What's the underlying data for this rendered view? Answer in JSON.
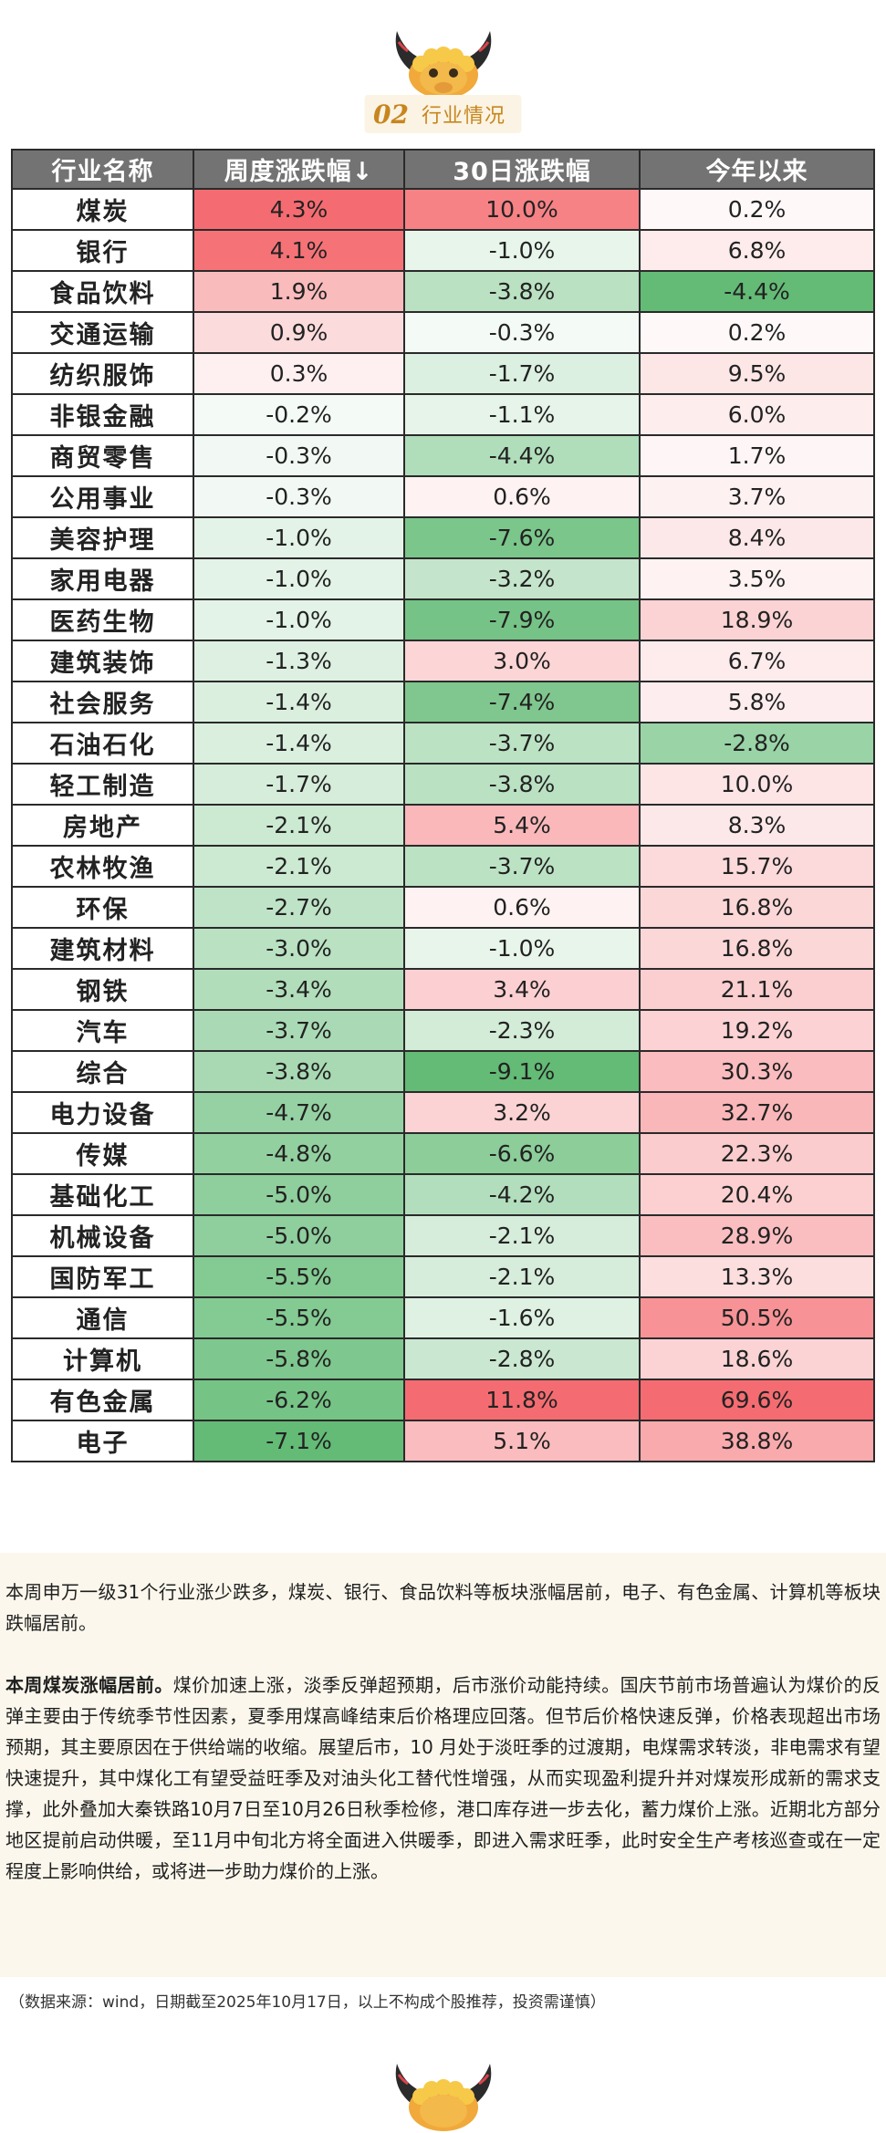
{
  "section": {
    "number": "02",
    "title": "行业情况"
  },
  "table": {
    "headers": [
      "行业名称",
      "周度涨跌幅↓",
      "30日涨跌幅",
      "今年以来"
    ],
    "rows": [
      [
        "煤炭",
        "4.3%",
        "10.0%",
        "0.2%"
      ],
      [
        "银行",
        "4.1%",
        "-1.0%",
        "6.8%"
      ],
      [
        "食品饮料",
        "1.9%",
        "-3.8%",
        "-4.4%"
      ],
      [
        "交通运输",
        "0.9%",
        "-0.3%",
        "0.2%"
      ],
      [
        "纺织服饰",
        "0.3%",
        "-1.7%",
        "9.5%"
      ],
      [
        "非银金融",
        "-0.2%",
        "-1.1%",
        "6.0%"
      ],
      [
        "商贸零售",
        "-0.3%",
        "-4.4%",
        "1.7%"
      ],
      [
        "公用事业",
        "-0.3%",
        "0.6%",
        "3.7%"
      ],
      [
        "美容护理",
        "-1.0%",
        "-7.6%",
        "8.4%"
      ],
      [
        "家用电器",
        "-1.0%",
        "-3.2%",
        "3.5%"
      ],
      [
        "医药生物",
        "-1.0%",
        "-7.9%",
        "18.9%"
      ],
      [
        "建筑装饰",
        "-1.3%",
        "3.0%",
        "6.7%"
      ],
      [
        "社会服务",
        "-1.4%",
        "-7.4%",
        "5.8%"
      ],
      [
        "石油石化",
        "-1.4%",
        "-3.7%",
        "-2.8%"
      ],
      [
        "轻工制造",
        "-1.7%",
        "-3.8%",
        "10.0%"
      ],
      [
        "房地产",
        "-2.1%",
        "5.4%",
        "8.3%"
      ],
      [
        "农林牧渔",
        "-2.1%",
        "-3.7%",
        "15.7%"
      ],
      [
        "环保",
        "-2.7%",
        "0.6%",
        "16.8%"
      ],
      [
        "建筑材料",
        "-3.0%",
        "-1.0%",
        "16.8%"
      ],
      [
        "钢铁",
        "-3.4%",
        "3.4%",
        "21.1%"
      ],
      [
        "汽车",
        "-3.7%",
        "-2.3%",
        "19.2%"
      ],
      [
        "综合",
        "-3.8%",
        "-9.1%",
        "30.3%"
      ],
      [
        "电力设备",
        "-4.7%",
        "3.2%",
        "32.7%"
      ],
      [
        "传媒",
        "-4.8%",
        "-6.6%",
        "22.3%"
      ],
      [
        "基础化工",
        "-5.0%",
        "-4.2%",
        "20.4%"
      ],
      [
        "机械设备",
        "-5.0%",
        "-2.1%",
        "28.9%"
      ],
      [
        "国防军工",
        "-5.5%",
        "-2.1%",
        "13.3%"
      ],
      [
        "通信",
        "-5.5%",
        "-1.6%",
        "50.5%"
      ],
      [
        "计算机",
        "-5.8%",
        "-2.8%",
        "18.6%"
      ],
      [
        "有色金属",
        "-6.2%",
        "11.8%",
        "69.6%"
      ],
      [
        "电子",
        "-7.1%",
        "5.1%",
        "38.8%"
      ]
    ]
  },
  "colors": {
    "positive": "#f4666b",
    "negative": "#5cb870",
    "header_bg": "#737373",
    "accent": "#c7861e",
    "summary_bg": "#fbf7ec"
  },
  "summary": {
    "para1": "本周申万一级31个行业涨少跌多，煤炭、银行、食品饮料等板块涨幅居前，电子、有色金属、计算机等板块跌幅居前。",
    "para2_lead": "本周煤炭涨幅居前。",
    "para2_body": "煤价加速上涨，淡季反弹超预期，后市涨价动能持续。国庆节前市场普遍认为煤价的反弹主要由于传统季节性因素，夏季用煤高峰结束后价格理应回落。但节后价格快速反弹，价格表现超出市场预期，其主要原因在于供给端的收缩。展望后市，10 月处于淡旺季的过渡期，电煤需求转淡，非电需求有望快速提升，其中煤化工有望受益旺季及对油头化工替代性增强，从而实现盈利提升并对煤炭形成新的需求支撑，此外叠加大秦铁路10月7日至10月26日秋季检修，港口库存进一步去化，蓄力煤价上涨。近期北方部分地区提前启动供暖，至11月中旬北方将全面进入供暖季，即进入需求旺季，此时安全生产考核巡查或在一定程度上影响供给，或将进一步助力煤价的上涨。"
  },
  "source_note": "（数据来源：wind，日期截至2025年10月17日，以上不构成个股推荐，投资需谨慎）",
  "icons": {
    "mascot": "bull-head-icon"
  }
}
